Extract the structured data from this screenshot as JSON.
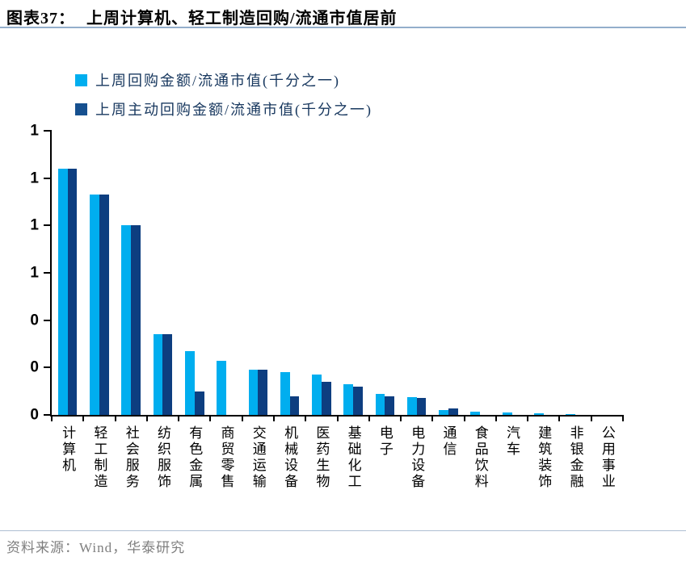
{
  "header": {
    "figure_label": "图表37：",
    "title": "上周计算机、轻工制造回购/流通市值居前"
  },
  "legend": {
    "items": [
      {
        "label": "上周回购金额/流通市值(千分之一)",
        "color": "#00aeef"
      },
      {
        "label": "上周主动回购金额/流通市值(千分之一)",
        "color": "#16508f"
      }
    ]
  },
  "footer": {
    "source": "资料来源：Wind，华泰研究"
  },
  "colors": {
    "series_light": "#00aeef",
    "series_dark": "#0d3e80",
    "title_rule": "#93aecb",
    "legend_text": "#17375e",
    "source_text": "#7f7f7f"
  },
  "chart_data": {
    "type": "bar",
    "title": "上周计算机、轻工制造回购/流通市值居前",
    "categories": [
      "计算机",
      "轻工制造",
      "社会服务",
      "纺织服饰",
      "有色金属",
      "商贸零售",
      "交通运输",
      "机械设备",
      "医药生物",
      "基础化工",
      "电子",
      "电力设备",
      "通信",
      "食品饮料",
      "汽车",
      "建筑装饰",
      "非银金融",
      "公用事业"
    ],
    "series": [
      {
        "name": "上周回购金额/流通市值(千分之一)",
        "color": "#00aeef",
        "values": [
          1.04,
          0.93,
          0.8,
          0.34,
          0.27,
          0.23,
          0.19,
          0.18,
          0.17,
          0.13,
          0.09,
          0.074,
          0.02,
          0.015,
          0.01,
          0.008,
          0.002,
          0
        ]
      },
      {
        "name": "上周主动回购金额/流通市值(千分之一)",
        "color": "#0d3e80",
        "values": [
          1.04,
          0.93,
          0.8,
          0.34,
          0.1,
          0,
          0.19,
          0.08,
          0.14,
          0.12,
          0.08,
          0.071,
          0.027,
          0,
          0,
          0,
          0,
          0
        ]
      }
    ],
    "xlabel": "",
    "ylabel": "",
    "ylim": [
      0,
      1.2
    ],
    "yticks": [
      {
        "value": 0.0,
        "label": "0"
      },
      {
        "value": 0.2,
        "label": "0"
      },
      {
        "value": 0.4,
        "label": "0"
      },
      {
        "value": 0.6,
        "label": "1"
      },
      {
        "value": 0.8,
        "label": "1"
      },
      {
        "value": 1.0,
        "label": "1"
      },
      {
        "value": 1.2,
        "label": "1"
      }
    ],
    "grid": false,
    "legend_position": "top-left"
  }
}
